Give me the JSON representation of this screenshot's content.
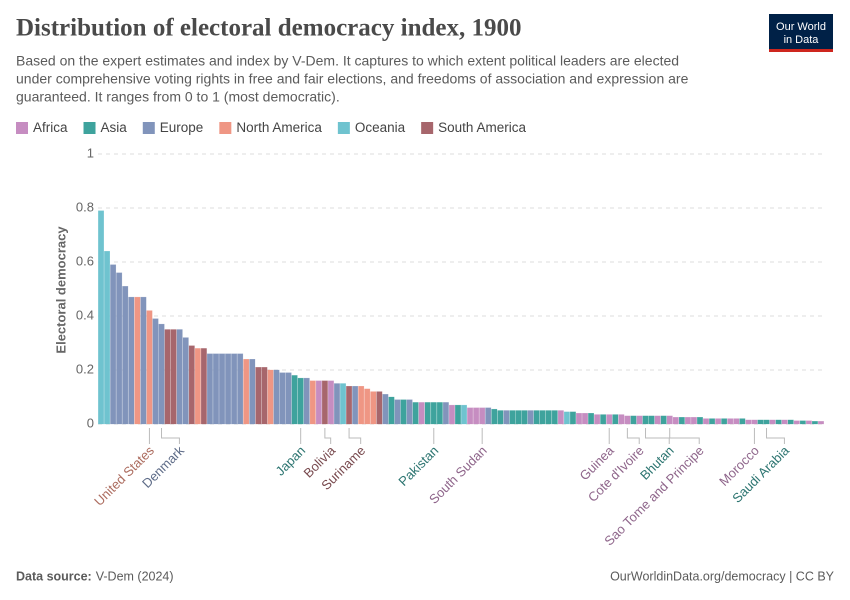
{
  "chart_data": {
    "type": "bar",
    "title": "Distribution of electoral democracy index, 1900",
    "subtitle": [
      "Based on the expert estimates and index by V-Dem. It captures to which extent political leaders are elected",
      "under comprehensive voting rights in free and fair elections, and freedoms of association and expression are",
      "guaranteed. It ranges from 0 to 1 (most democratic)."
    ],
    "logo": [
      "Our World",
      "in Data"
    ],
    "y_label": "Electoral democracy",
    "ylim": [
      0,
      1
    ],
    "yticks": [
      0,
      0.2,
      0.4,
      0.6,
      0.8,
      1
    ],
    "grid": true,
    "source_label": "Data source:",
    "source": "V-Dem (2024)",
    "credit": "OurWorldinData.org/democracy | CC BY",
    "categories": [
      null,
      null,
      null,
      null,
      null,
      null,
      null,
      null,
      "United States",
      null,
      "Denmark",
      null,
      null,
      null,
      null,
      null,
      null,
      null,
      null,
      null,
      null,
      null,
      null,
      null,
      null,
      null,
      null,
      null,
      null,
      null,
      null,
      null,
      null,
      "Japan",
      null,
      null,
      null,
      "Bolivia",
      null,
      null,
      null,
      "Suriname",
      null,
      null,
      null,
      null,
      null,
      null,
      null,
      null,
      null,
      null,
      null,
      null,
      null,
      "Pakistan",
      null,
      null,
      null,
      null,
      null,
      null,
      null,
      "South Sudan",
      null,
      null,
      null,
      null,
      null,
      null,
      null,
      null,
      null,
      null,
      null,
      null,
      null,
      null,
      null,
      null,
      null,
      null,
      null,
      null,
      "Guinea",
      null,
      null,
      "Cote d'Ivoire",
      null,
      null,
      "Bhutan",
      null,
      null,
      null,
      "Sao Tome and Principe",
      null,
      null,
      null,
      null,
      null,
      null,
      null,
      null,
      null,
      null,
      null,
      null,
      null,
      "Morocco",
      null,
      "Saudi Arabia",
      null,
      null,
      null,
      null,
      null,
      null,
      null,
      null,
      null
    ],
    "series": [
      {
        "name": "Africa",
        "color": "#c68dc1",
        "values": [
          null,
          null,
          null,
          null,
          null,
          null,
          null,
          null,
          null,
          null,
          null,
          null,
          null,
          null,
          null,
          null,
          null,
          null,
          null,
          null,
          null,
          null,
          null,
          null,
          null,
          null,
          null,
          null,
          null,
          null,
          null,
          null,
          null,
          null,
          null,
          null,
          0.16,
          null,
          0.16,
          null,
          null,
          null,
          null,
          null,
          null,
          null,
          null,
          null,
          null,
          null,
          null,
          null,
          null,
          0.08,
          null,
          null,
          null,
          null,
          0.07,
          null,
          null,
          0.06,
          0.06,
          0.06,
          null,
          null,
          null,
          null,
          null,
          null,
          null,
          null,
          null,
          null,
          null,
          null,
          0.05,
          null,
          null,
          0.04,
          0.04,
          null,
          0.035,
          null,
          0.035,
          null,
          0.035,
          0.03,
          null,
          0.03,
          null,
          null,
          0.03,
          null,
          0.03,
          0.025,
          null,
          0.025,
          0.025,
          null,
          0.02,
          null,
          0.02,
          null,
          0.02,
          0.02,
          null,
          0.015,
          0.015,
          null,
          null,
          0.015,
          null,
          0.015,
          null,
          0.012,
          null,
          0.012,
          null,
          0.01
        ]
      },
      {
        "name": "Asia",
        "color": "#3ea39d",
        "values": [
          null,
          null,
          null,
          null,
          null,
          null,
          null,
          null,
          null,
          null,
          null,
          null,
          null,
          null,
          null,
          null,
          null,
          null,
          null,
          null,
          null,
          null,
          null,
          null,
          null,
          null,
          null,
          null,
          null,
          null,
          null,
          null,
          0.18,
          0.17,
          null,
          null,
          null,
          null,
          null,
          null,
          null,
          null,
          null,
          null,
          null,
          null,
          null,
          null,
          0.1,
          null,
          0.09,
          null,
          0.08,
          null,
          0.08,
          0.08,
          0.08,
          null,
          null,
          0.07,
          null,
          null,
          null,
          null,
          null,
          0.055,
          0.05,
          null,
          0.05,
          0.05,
          0.05,
          null,
          0.05,
          0.05,
          0.05,
          0.05,
          null,
          null,
          0.045,
          null,
          null,
          0.04,
          null,
          0.035,
          null,
          0.035,
          null,
          null,
          0.03,
          null,
          0.03,
          0.03,
          null,
          0.03,
          null,
          null,
          0.025,
          null,
          null,
          0.025,
          null,
          0.02,
          null,
          0.02,
          null,
          null,
          0.02,
          null,
          null,
          0.015,
          0.015,
          null,
          0.015,
          null,
          0.015,
          null,
          0.012,
          null,
          0.01,
          null
        ]
      },
      {
        "name": "Europe",
        "color": "#8194bb",
        "values": [
          null,
          null,
          0.59,
          0.56,
          0.51,
          0.47,
          null,
          0.47,
          null,
          0.39,
          0.37,
          null,
          null,
          0.35,
          0.32,
          null,
          null,
          null,
          0.26,
          0.26,
          0.26,
          0.26,
          0.26,
          0.26,
          null,
          0.24,
          null,
          null,
          null,
          0.2,
          0.19,
          0.19,
          null,
          null,
          0.17,
          null,
          null,
          null,
          null,
          0.15,
          null,
          null,
          0.14,
          null,
          null,
          null,
          null,
          0.11,
          null,
          0.09,
          null,
          0.09,
          null,
          null,
          null,
          null,
          null,
          0.08,
          null,
          null,
          null,
          null,
          null,
          null,
          0.06,
          null,
          null,
          0.05,
          null,
          null,
          null,
          0.05,
          null,
          null,
          null,
          null,
          null,
          null,
          null,
          null,
          null,
          null,
          null,
          null,
          null,
          null,
          null,
          null,
          null,
          null,
          null,
          null,
          null,
          null,
          null,
          null,
          null,
          null,
          null,
          null,
          null,
          null,
          null,
          null,
          null,
          null,
          null,
          null,
          null,
          null,
          null,
          null,
          null,
          null,
          null,
          null,
          null,
          null,
          null,
          null
        ]
      },
      {
        "name": "North America",
        "color": "#ef9684",
        "values": [
          null,
          null,
          null,
          null,
          null,
          null,
          0.47,
          null,
          0.42,
          null,
          null,
          null,
          null,
          null,
          null,
          null,
          0.28,
          null,
          null,
          null,
          null,
          null,
          null,
          null,
          0.24,
          null,
          null,
          null,
          0.2,
          null,
          null,
          null,
          null,
          null,
          null,
          0.16,
          null,
          null,
          null,
          null,
          null,
          null,
          null,
          0.14,
          0.13,
          0.12,
          null,
          null,
          null,
          null,
          null,
          null,
          null,
          null,
          null,
          null,
          null,
          null,
          null,
          null,
          null,
          null,
          null,
          null,
          null,
          null,
          null,
          null,
          null,
          null,
          null,
          null,
          null,
          null,
          null,
          null,
          null,
          null,
          null,
          null,
          null,
          null,
          null,
          null,
          null,
          null,
          null,
          null,
          null,
          null,
          null,
          null,
          null,
          null,
          null,
          null,
          null,
          null,
          null,
          null,
          null,
          null,
          null,
          null,
          null,
          null,
          null,
          null,
          null,
          null,
          null,
          null,
          null,
          null,
          null,
          null,
          null,
          null,
          null,
          null
        ]
      },
      {
        "name": "Oceania",
        "color": "#6fc3cf",
        "values": [
          0.79,
          0.64,
          null,
          null,
          null,
          null,
          null,
          null,
          null,
          null,
          null,
          null,
          null,
          null,
          null,
          null,
          null,
          null,
          null,
          null,
          null,
          null,
          null,
          null,
          null,
          null,
          null,
          null,
          null,
          null,
          null,
          null,
          null,
          null,
          null,
          null,
          null,
          null,
          null,
          null,
          0.15,
          null,
          null,
          null,
          null,
          null,
          null,
          null,
          null,
          null,
          null,
          null,
          null,
          null,
          null,
          null,
          null,
          null,
          null,
          null,
          0.07,
          null,
          null,
          null,
          null,
          null,
          null,
          null,
          null,
          null,
          null,
          null,
          null,
          null,
          null,
          null,
          null,
          0.045,
          null,
          null,
          null,
          null,
          null,
          null,
          null,
          null,
          null,
          null,
          null,
          null,
          null,
          null,
          null,
          null,
          null,
          null,
          null,
          null,
          null,
          null,
          null,
          null,
          null,
          null,
          null,
          null,
          null,
          null,
          null,
          null,
          null,
          null,
          null,
          null,
          null,
          null,
          null,
          null,
          null,
          null
        ]
      },
      {
        "name": "South America",
        "color": "#a7666c",
        "values": [
          null,
          null,
          null,
          null,
          null,
          null,
          null,
          null,
          null,
          null,
          null,
          0.35,
          0.35,
          null,
          null,
          0.29,
          null,
          0.28,
          null,
          null,
          null,
          null,
          null,
          null,
          null,
          null,
          0.21,
          0.21,
          null,
          null,
          null,
          null,
          null,
          null,
          null,
          null,
          null,
          0.16,
          null,
          null,
          null,
          0.14,
          null,
          null,
          null,
          null,
          0.12,
          null,
          null,
          null,
          null,
          null,
          null,
          null,
          null,
          null,
          null,
          null,
          null,
          null,
          null,
          null,
          null,
          null,
          null,
          null,
          null,
          null,
          null,
          null,
          null,
          null,
          null,
          null,
          null,
          null,
          null,
          null,
          null,
          null,
          null,
          null,
          null,
          null,
          null,
          null,
          null,
          null,
          null,
          null,
          null,
          null,
          null,
          null,
          null,
          null,
          null,
          null,
          null,
          null,
          null,
          null,
          null,
          null,
          null,
          null,
          null,
          null,
          null,
          null,
          null,
          null,
          null,
          null,
          null,
          null,
          null,
          null,
          null,
          null
        ]
      }
    ]
  }
}
